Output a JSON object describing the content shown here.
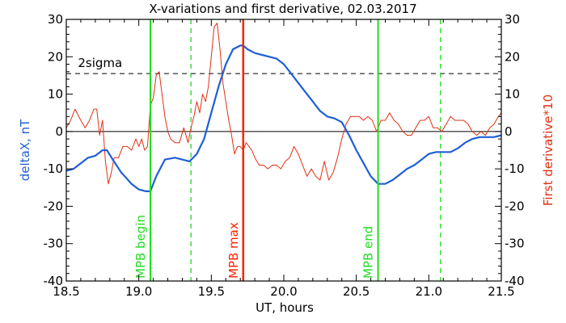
{
  "chart_data": {
    "type": "line",
    "title": "X-variations and first derivative, 02.03.2017",
    "xlabel": "UT, hours",
    "ylabel_left": "deltaX, nT",
    "ylabel_right": "First derivative*10",
    "xlim": [
      18.5,
      21.5
    ],
    "ylim": [
      -40,
      30
    ],
    "x_ticks": [
      18.5,
      19.0,
      19.5,
      20.0,
      20.5,
      21.0,
      21.5
    ],
    "x_tick_labels": [
      "18.5",
      "19.0",
      "19.5",
      "20.0",
      "20.5",
      "21.0",
      "21.5"
    ],
    "y_ticks": [
      -40,
      -30,
      -20,
      -10,
      0,
      10,
      20,
      30
    ],
    "y_tick_labels": [
      "-40",
      "-30",
      "-20",
      "-10",
      "0",
      "10",
      "20",
      "30"
    ],
    "colors": {
      "deltaX": "#1f5fd6",
      "derivative": "#e03010",
      "mpb_edges": "#22dd22",
      "mpb_max": "#ff2000",
      "left_axis_label": "#1f5fd6",
      "right_axis_label": "#e03010",
      "mpb_labels": "#22dd22",
      "mpb_max_label": "#ff2000"
    },
    "series": [
      {
        "name": "deltaX, nT",
        "axis": "left",
        "x": [
          18.5,
          18.55,
          18.6,
          18.65,
          18.7,
          18.75,
          18.78,
          18.82,
          18.88,
          18.95,
          19.0,
          19.05,
          19.08,
          19.12,
          19.18,
          19.25,
          19.3,
          19.35,
          19.4,
          19.45,
          19.5,
          19.55,
          19.6,
          19.65,
          19.7,
          19.72,
          19.75,
          19.8,
          19.85,
          19.9,
          19.95,
          20.0,
          20.05,
          20.1,
          20.15,
          20.2,
          20.25,
          20.3,
          20.35,
          20.4,
          20.45,
          20.5,
          20.55,
          20.6,
          20.65,
          20.7,
          20.75,
          20.8,
          20.85,
          20.9,
          20.95,
          21.0,
          21.05,
          21.1,
          21.15,
          21.2,
          21.25,
          21.3,
          21.35,
          21.4,
          21.45,
          21.5
        ],
        "y": [
          -10.5,
          -10,
          -8.5,
          -7,
          -6.5,
          -5,
          -5,
          -7.5,
          -11,
          -14,
          -15.5,
          -16,
          -16,
          -12,
          -7.5,
          -7,
          -7.5,
          -8,
          -6,
          -2,
          5,
          12,
          18,
          22,
          23,
          23,
          22,
          21,
          20.5,
          20,
          19.5,
          18,
          15.5,
          13,
          10.5,
          8,
          5.5,
          4,
          3.5,
          2.5,
          -1,
          -5,
          -8.5,
          -12,
          -14,
          -14,
          -13,
          -11.5,
          -10,
          -9,
          -7.5,
          -6,
          -5.5,
          -5.5,
          -5.5,
          -4.5,
          -3,
          -2,
          -1.5,
          -1.5,
          -1.5,
          -1
        ]
      },
      {
        "name": "First derivative*10",
        "axis": "right",
        "x": [
          18.5,
          18.53,
          18.56,
          18.6,
          18.63,
          18.66,
          18.69,
          18.71,
          18.73,
          18.75,
          18.77,
          18.79,
          18.81,
          18.83,
          18.86,
          18.89,
          18.92,
          18.95,
          18.98,
          19.0,
          19.02,
          19.04,
          19.06,
          19.08,
          19.1,
          19.12,
          19.14,
          19.16,
          19.18,
          19.2,
          19.22,
          19.25,
          19.28,
          19.31,
          19.34,
          19.36,
          19.38,
          19.4,
          19.42,
          19.44,
          19.46,
          19.48,
          19.5,
          19.52,
          19.54,
          19.56,
          19.58,
          19.6,
          19.62,
          19.64,
          19.66,
          19.68,
          19.7,
          19.72,
          19.74,
          19.76,
          19.78,
          19.8,
          19.83,
          19.86,
          19.89,
          19.92,
          19.95,
          19.98,
          20.01,
          20.04,
          20.07,
          20.1,
          20.13,
          20.16,
          20.19,
          20.22,
          20.25,
          20.28,
          20.31,
          20.34,
          20.37,
          20.4,
          20.43,
          20.46,
          20.49,
          20.52,
          20.55,
          20.58,
          20.61,
          20.64,
          20.67,
          20.7,
          20.73,
          20.76,
          20.79,
          20.82,
          20.85,
          20.88,
          20.91,
          20.94,
          20.97,
          21.0,
          21.03,
          21.06,
          21.09,
          21.12,
          21.15,
          21.18,
          21.21,
          21.24,
          21.27,
          21.3,
          21.33,
          21.36,
          21.39,
          21.42,
          21.45,
          21.48,
          21.5
        ],
        "y": [
          1,
          3,
          6,
          3,
          1,
          3,
          6,
          6,
          -1,
          3,
          -8,
          -14,
          -11,
          -7,
          -7,
          -4,
          -4,
          -5,
          -2,
          -4,
          -2,
          -5,
          -4,
          7,
          9,
          15,
          16,
          10,
          4,
          0,
          -2,
          -3,
          -3,
          1,
          -3,
          1,
          4,
          8,
          5,
          10,
          8,
          12,
          20,
          28,
          29,
          22,
          13,
          8,
          3,
          -1,
          -6,
          -4,
          -4,
          -5,
          -3,
          -4,
          -5,
          -7,
          -9,
          -9,
          -10,
          -9,
          -9,
          -10,
          -8,
          -7,
          -4,
          -6,
          -9,
          -12,
          -10,
          -12,
          -13,
          -8,
          -13,
          -11,
          -7,
          -2,
          2,
          4,
          4,
          4,
          3,
          4,
          3,
          0,
          3,
          3,
          5,
          3,
          2,
          0,
          -1,
          -1,
          1,
          3,
          3,
          4,
          1,
          1,
          0,
          2,
          4,
          3,
          3,
          3,
          2,
          0,
          -1,
          0,
          -1,
          1,
          2,
          4,
          5
        ]
      }
    ],
    "lines": {
      "zero_level": 0,
      "two_sigma_level": 15.5,
      "two_sigma_label": "2sigma",
      "mpb_begin_x": 19.08,
      "mpb_begin_label": "MPB begin",
      "mpb_max_x": 19.72,
      "mpb_max_label": "MPB max",
      "mpb_end_x": 20.65,
      "mpb_end_label": "MPB end",
      "dashed_green_x": [
        19.36,
        21.08
      ]
    },
    "grid": false,
    "legend": "none"
  }
}
